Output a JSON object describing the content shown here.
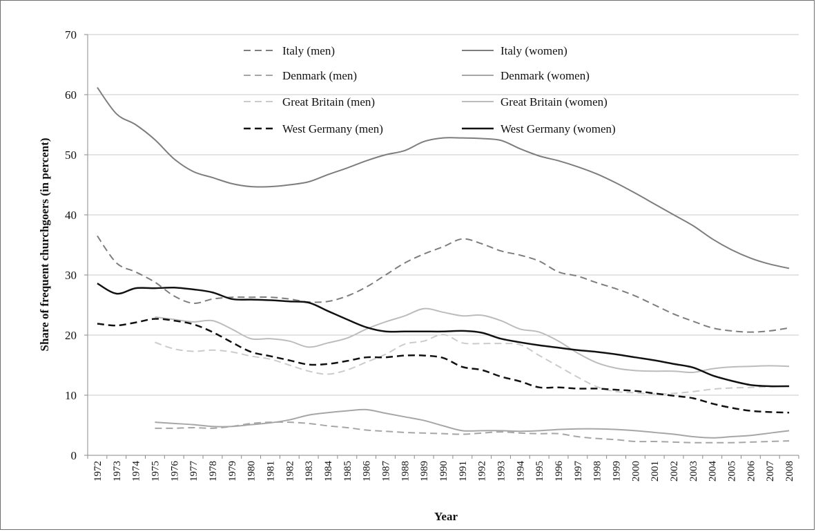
{
  "chart_data": {
    "type": "line",
    "title": "",
    "xlabel": "Year",
    "ylabel": "Share of frequent churchgoers (in percent)",
    "ylim": [
      0,
      70
    ],
    "yticks": [
      "0",
      "10",
      "20",
      "30",
      "40",
      "50",
      "60",
      "70"
    ],
    "grid": true,
    "legend_position": "top",
    "x": [
      "1972",
      "1973",
      "1974",
      "1975",
      "1976",
      "1977",
      "1978",
      "1979",
      "1980",
      "1981",
      "1982",
      "1983",
      "1984",
      "1985",
      "1986",
      "1987",
      "1988",
      "1989",
      "1990",
      "1991",
      "1992",
      "1993",
      "1994",
      "1995",
      "1996",
      "1997",
      "1998",
      "1999",
      "2000",
      "2001",
      "2002",
      "2003",
      "2004",
      "2005",
      "2006",
      "2007",
      "2008"
    ],
    "series": [
      {
        "name": "Italy (men)",
        "color": "#7d7d7d",
        "dashed": true,
        "width": 2,
        "values": [
          36.5,
          32,
          30.5,
          28.8,
          26.5,
          25.3,
          26,
          26.3,
          26.3,
          26.3,
          26,
          25.5,
          25.6,
          26.5,
          28,
          30,
          32,
          33.5,
          34.7,
          36,
          35.2,
          34,
          33.3,
          32.3,
          30.5,
          29.8,
          28.7,
          27.7,
          26.5,
          25,
          23.5,
          22.3,
          21.2,
          20.7,
          20.5,
          20.7,
          21.2
        ]
      },
      {
        "name": "Italy (women)",
        "color": "#7d7d7d",
        "dashed": false,
        "width": 2,
        "values": [
          61.2,
          56.8,
          55,
          52.5,
          49.3,
          47.2,
          46.2,
          45.2,
          44.7,
          44.7,
          45,
          45.5,
          46.7,
          47.8,
          49,
          50,
          50.7,
          52.2,
          52.8,
          52.8,
          52.7,
          52.4,
          51,
          49.8,
          49,
          48,
          46.8,
          45.3,
          43.6,
          41.8,
          40,
          38.2,
          36,
          34.2,
          32.8,
          31.8,
          31.1
        ]
      },
      {
        "name": "Denmark (men)",
        "color": "#a6a6a6",
        "dashed": true,
        "width": 2,
        "values": [
          null,
          null,
          null,
          4.5,
          4.5,
          4.6,
          4.5,
          4.8,
          5.3,
          5.5,
          5.5,
          5.3,
          4.9,
          4.6,
          4.2,
          4,
          3.8,
          3.7,
          3.6,
          3.5,
          3.7,
          3.9,
          3.7,
          3.6,
          3.6,
          3.1,
          2.8,
          2.6,
          2.3,
          2.3,
          2.2,
          2.1,
          2.1,
          2.1,
          2.2,
          2.3,
          2.4
        ]
      },
      {
        "name": "Denmark (women)",
        "color": "#a6a6a6",
        "dashed": false,
        "width": 2,
        "values": [
          null,
          null,
          null,
          5.5,
          5.3,
          5.1,
          4.8,
          4.8,
          5.1,
          5.4,
          5.9,
          6.7,
          7.1,
          7.4,
          7.6,
          7,
          6.4,
          5.8,
          4.9,
          4.1,
          4.1,
          4.1,
          4,
          4.1,
          4.3,
          4.4,
          4.4,
          4.3,
          4.1,
          3.8,
          3.5,
          3.1,
          2.9,
          3.1,
          3.3,
          3.7,
          4.1
        ]
      },
      {
        "name": "Great Britain (men)",
        "color": "#cbcbcb",
        "dashed": true,
        "width": 2,
        "values": [
          null,
          null,
          null,
          18.8,
          17.7,
          17.3,
          17.5,
          17.2,
          16.5,
          16,
          15,
          14,
          13.5,
          14.2,
          15.5,
          16.8,
          18.5,
          19,
          20.1,
          18.7,
          18.6,
          18.6,
          18.4,
          16.6,
          14.8,
          13,
          11.4,
          10.6,
          10.4,
          10.2,
          10.3,
          10.6,
          11,
          11.2,
          11.3,
          11.4,
          11.5
        ]
      },
      {
        "name": "Great Britain (women)",
        "color": "#bcbcbc",
        "dashed": false,
        "width": 2,
        "values": [
          null,
          null,
          null,
          23,
          22.6,
          22.2,
          22.4,
          21,
          19.4,
          19.4,
          19,
          18,
          18.7,
          19.5,
          21,
          22.2,
          23.2,
          24.4,
          23.8,
          23.2,
          23.3,
          22.4,
          21,
          20.5,
          19,
          17,
          15.4,
          14.5,
          14.1,
          14,
          14,
          13.8,
          14.4,
          14.7,
          14.8,
          14.9,
          14.8
        ]
      },
      {
        "name": "West Germany (men)",
        "color": "#111111",
        "dashed": true,
        "width": 2.5,
        "values": [
          21.9,
          21.6,
          22.1,
          22.7,
          22.4,
          21.8,
          20.5,
          18.8,
          17.2,
          16.5,
          15.8,
          15.1,
          15.2,
          15.7,
          16.3,
          16.3,
          16.6,
          16.6,
          16.2,
          14.7,
          14.2,
          13.1,
          12.3,
          11.3,
          11.3,
          11.1,
          11.1,
          10.9,
          10.7,
          10.3,
          9.9,
          9.5,
          8.6,
          7.9,
          7.4,
          7.2,
          7.1
        ]
      },
      {
        "name": "West Germany (women)",
        "color": "#111111",
        "dashed": false,
        "width": 2.5,
        "values": [
          28.6,
          26.9,
          27.8,
          27.8,
          27.9,
          27.6,
          27.1,
          26,
          25.9,
          25.8,
          25.6,
          25.4,
          24,
          22.6,
          21.3,
          20.6,
          20.6,
          20.6,
          20.6,
          20.7,
          20.4,
          19.4,
          18.8,
          18.3,
          17.9,
          17.5,
          17.2,
          16.8,
          16.3,
          15.8,
          15.2,
          14.6,
          13.3,
          12.4,
          11.7,
          11.5,
          11.5
        ]
      }
    ]
  }
}
